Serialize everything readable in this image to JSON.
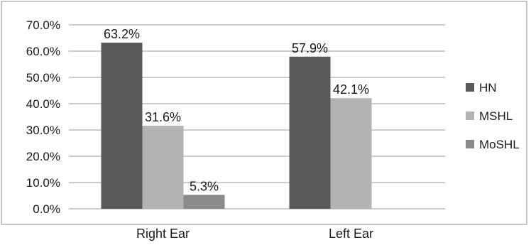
{
  "chart_data": {
    "type": "bar",
    "categories": [
      "Right Ear",
      "Left Ear"
    ],
    "series": [
      {
        "name": "HN",
        "values": [
          63.2,
          57.9
        ],
        "labels": [
          "63.2%",
          "57.9%"
        ],
        "color": "#595959"
      },
      {
        "name": "MSHL",
        "values": [
          31.6,
          42.1
        ],
        "labels": [
          "31.6%",
          "42.1%"
        ],
        "color": "#b3b3b3"
      },
      {
        "name": "MoSHL",
        "values": [
          5.3,
          null
        ],
        "labels": [
          "5.3%",
          null
        ],
        "color": "#8a8a8a"
      }
    ],
    "yticks": [
      "0.0%",
      "10.0%",
      "20.0%",
      "30.0%",
      "40.0%",
      "50.0%",
      "60.0%",
      "70.0%"
    ],
    "ylim": [
      0,
      70
    ],
    "title": "",
    "xlabel": "",
    "ylabel": "",
    "grid": true,
    "legend_position": "right"
  }
}
